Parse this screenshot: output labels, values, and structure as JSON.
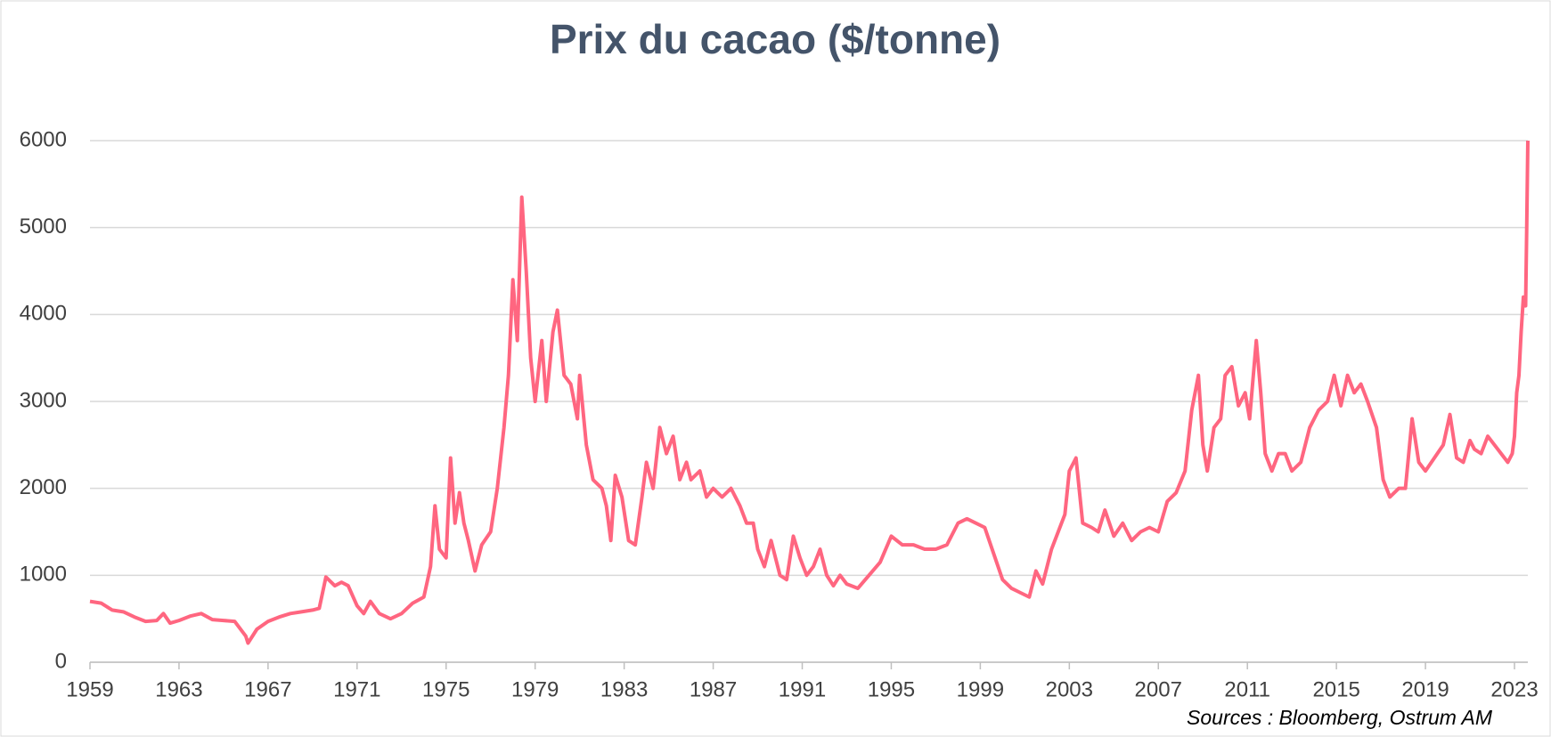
{
  "chart_data": {
    "type": "line",
    "title": "Prix du cacao ($/tonne)",
    "source": "Sources : Bloomberg, Ostrum AM",
    "color": "#ff6680",
    "grid": true,
    "xlim": [
      1959,
      2023.6
    ],
    "xticks": [
      1959,
      1963,
      1967,
      1971,
      1975,
      1979,
      1983,
      1987,
      1991,
      1995,
      1999,
      2003,
      2007,
      2011,
      2015,
      2019,
      2023
    ],
    "ylim": [
      0,
      6000
    ],
    "yticks": [
      0,
      1000,
      2000,
      3000,
      4000,
      5000,
      6000
    ],
    "x": [
      1959,
      1959.5,
      1960,
      1960.5,
      1961,
      1961.5,
      1962,
      1962.3,
      1962.6,
      1963,
      1963.5,
      1964,
      1964.5,
      1965,
      1965.5,
      1966,
      1966.1,
      1966.5,
      1967,
      1967.5,
      1968,
      1968.5,
      1969,
      1969.3,
      1969.6,
      1970,
      1970.3,
      1970.6,
      1971,
      1971.3,
      1971.6,
      1972,
      1972.5,
      1973,
      1973.5,
      1974,
      1974.3,
      1974.5,
      1974.7,
      1975,
      1975.2,
      1975.4,
      1975.6,
      1975.8,
      1976,
      1976.3,
      1976.6,
      1977,
      1977.3,
      1977.6,
      1977.8,
      1978,
      1978.2,
      1978.4,
      1978.6,
      1978.8,
      1979,
      1979.3,
      1979.5,
      1979.8,
      1980,
      1980.3,
      1980.6,
      1980.9,
      1981,
      1981.3,
      1981.6,
      1982,
      1982.2,
      1982.4,
      1982.6,
      1982.9,
      1983.2,
      1983.5,
      1983.8,
      1984,
      1984.3,
      1984.6,
      1984.9,
      1985.2,
      1985.5,
      1985.8,
      1986,
      1986.4,
      1986.7,
      1987,
      1987.4,
      1987.8,
      1988.2,
      1988.5,
      1988.8,
      1989,
      1989.3,
      1989.6,
      1990,
      1990.3,
      1990.6,
      1990.9,
      1991.2,
      1991.5,
      1991.8,
      1992.1,
      1992.4,
      1992.7,
      1993,
      1993.5,
      1994,
      1994.5,
      1995,
      1995.5,
      1996,
      1996.5,
      1997,
      1997.5,
      1998,
      1998.4,
      1998.8,
      1999.2,
      1999.6,
      2000,
      2000.4,
      2000.8,
      2001.2,
      2001.5,
      2001.8,
      2002.2,
      2002.5,
      2002.8,
      2003,
      2003.3,
      2003.6,
      2004,
      2004.3,
      2004.6,
      2005,
      2005.4,
      2005.8,
      2006.2,
      2006.6,
      2007,
      2007.4,
      2007.8,
      2008.2,
      2008.5,
      2008.8,
      2009,
      2009.2,
      2009.5,
      2009.8,
      2010,
      2010.3,
      2010.6,
      2010.9,
      2011.1,
      2011.4,
      2011.6,
      2011.8,
      2012.1,
      2012.4,
      2012.7,
      2013,
      2013.4,
      2013.8,
      2014.2,
      2014.6,
      2014.9,
      2015.2,
      2015.5,
      2015.8,
      2016.1,
      2016.4,
      2016.8,
      2017.1,
      2017.4,
      2017.8,
      2018.1,
      2018.4,
      2018.7,
      2019,
      2019.4,
      2019.8,
      2020.1,
      2020.4,
      2020.7,
      2021,
      2021.2,
      2021.5,
      2021.8,
      2022.1,
      2022.4,
      2022.7,
      2022.9,
      2023,
      2023.1,
      2023.2,
      2023.3,
      2023.4,
      2023.5,
      2023.55,
      2023.6
    ],
    "values": [
      700,
      680,
      600,
      580,
      520,
      470,
      480,
      560,
      450,
      480,
      530,
      560,
      490,
      480,
      470,
      300,
      220,
      380,
      470,
      520,
      560,
      580,
      600,
      620,
      980,
      880,
      920,
      880,
      650,
      560,
      700,
      560,
      500,
      560,
      680,
      750,
      1100,
      1800,
      1300,
      1200,
      2350,
      1600,
      1950,
      1600,
      1400,
      1050,
      1350,
      1500,
      2000,
      2700,
      3300,
      4400,
      3700,
      5350,
      4500,
      3500,
      3000,
      3700,
      3000,
      3800,
      4050,
      3300,
      3200,
      2800,
      3300,
      2500,
      2100,
      2000,
      1800,
      1400,
      2150,
      1900,
      1400,
      1350,
      1900,
      2300,
      2000,
      2700,
      2400,
      2600,
      2100,
      2300,
      2100,
      2200,
      1900,
      2000,
      1900,
      2000,
      1800,
      1600,
      1600,
      1300,
      1100,
      1400,
      1000,
      950,
      1450,
      1200,
      1000,
      1100,
      1300,
      1000,
      880,
      1000,
      900,
      850,
      1000,
      1150,
      1450,
      1350,
      1350,
      1300,
      1300,
      1350,
      1600,
      1650,
      1600,
      1550,
      1250,
      950,
      850,
      800,
      750,
      1050,
      900,
      1300,
      1500,
      1700,
      2200,
      2350,
      1600,
      1550,
      1500,
      1750,
      1450,
      1600,
      1400,
      1500,
      1550,
      1500,
      1850,
      1950,
      2200,
      2900,
      3300,
      2500,
      2200,
      2700,
      2800,
      3300,
      3400,
      2950,
      3100,
      2800,
      3700,
      3100,
      2400,
      2200,
      2400,
      2400,
      2200,
      2300,
      2700,
      2900,
      3000,
      3300,
      2950,
      3300,
      3100,
      3200,
      3000,
      2700,
      2100,
      1900,
      2000,
      2000,
      2800,
      2300,
      2200,
      2350,
      2500,
      2850,
      2350,
      2300,
      2550,
      2450,
      2400,
      2600,
      2500,
      2400,
      2300,
      2400,
      2600,
      3100,
      3300,
      3800,
      4200,
      4100,
      5000,
      6000
    ]
  }
}
